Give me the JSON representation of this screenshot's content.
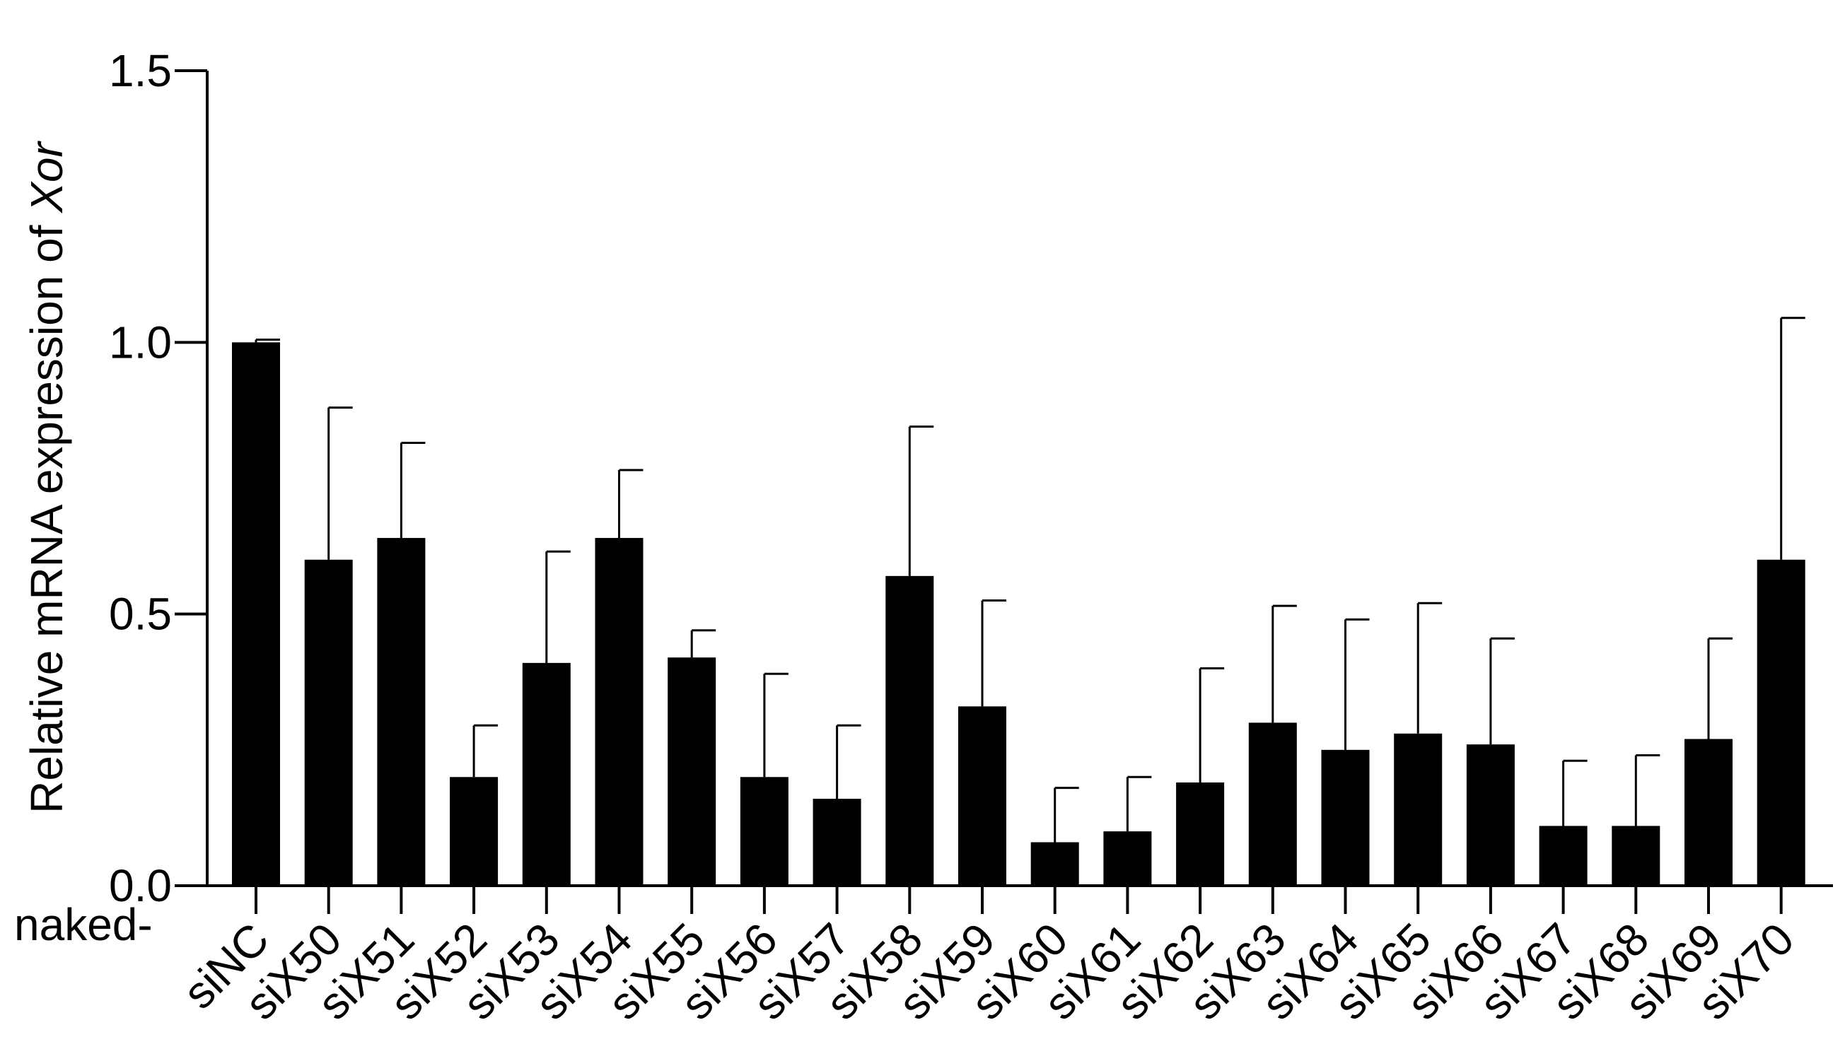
{
  "chart_data": {
    "type": "bar",
    "ylabel": "Relative mRNA expression of ",
    "ylabel_italic": "Xor",
    "xlabel": "",
    "category_prefix": "naked-",
    "ylim": [
      0,
      1.5
    ],
    "yticks": [
      "0.0",
      "0.5",
      "1.0",
      "1.5"
    ],
    "grid": false,
    "legend": "none",
    "bar_color": "#000000",
    "categories": [
      "siNC",
      "siX50",
      "siX51",
      "siX52",
      "siX53",
      "siX54",
      "siX55",
      "siX56",
      "siX57",
      "siX58",
      "siX59",
      "siX60",
      "siX61",
      "siX62",
      "siX63",
      "siX64",
      "siX65",
      "siX66",
      "siX67",
      "siX68",
      "siX69",
      "siX70"
    ],
    "values": [
      1.0,
      0.6,
      0.64,
      0.2,
      0.41,
      0.64,
      0.42,
      0.2,
      0.16,
      0.57,
      0.33,
      0.08,
      0.1,
      0.19,
      0.3,
      0.25,
      0.28,
      0.26,
      0.11,
      0.11,
      0.27,
      0.6
    ],
    "error_upper": [
      1.005,
      0.88,
      0.815,
      0.295,
      0.615,
      0.765,
      0.47,
      0.39,
      0.295,
      0.845,
      0.525,
      0.18,
      0.2,
      0.4,
      0.515,
      0.49,
      0.52,
      0.455,
      0.23,
      0.24,
      0.455,
      1.045
    ]
  }
}
